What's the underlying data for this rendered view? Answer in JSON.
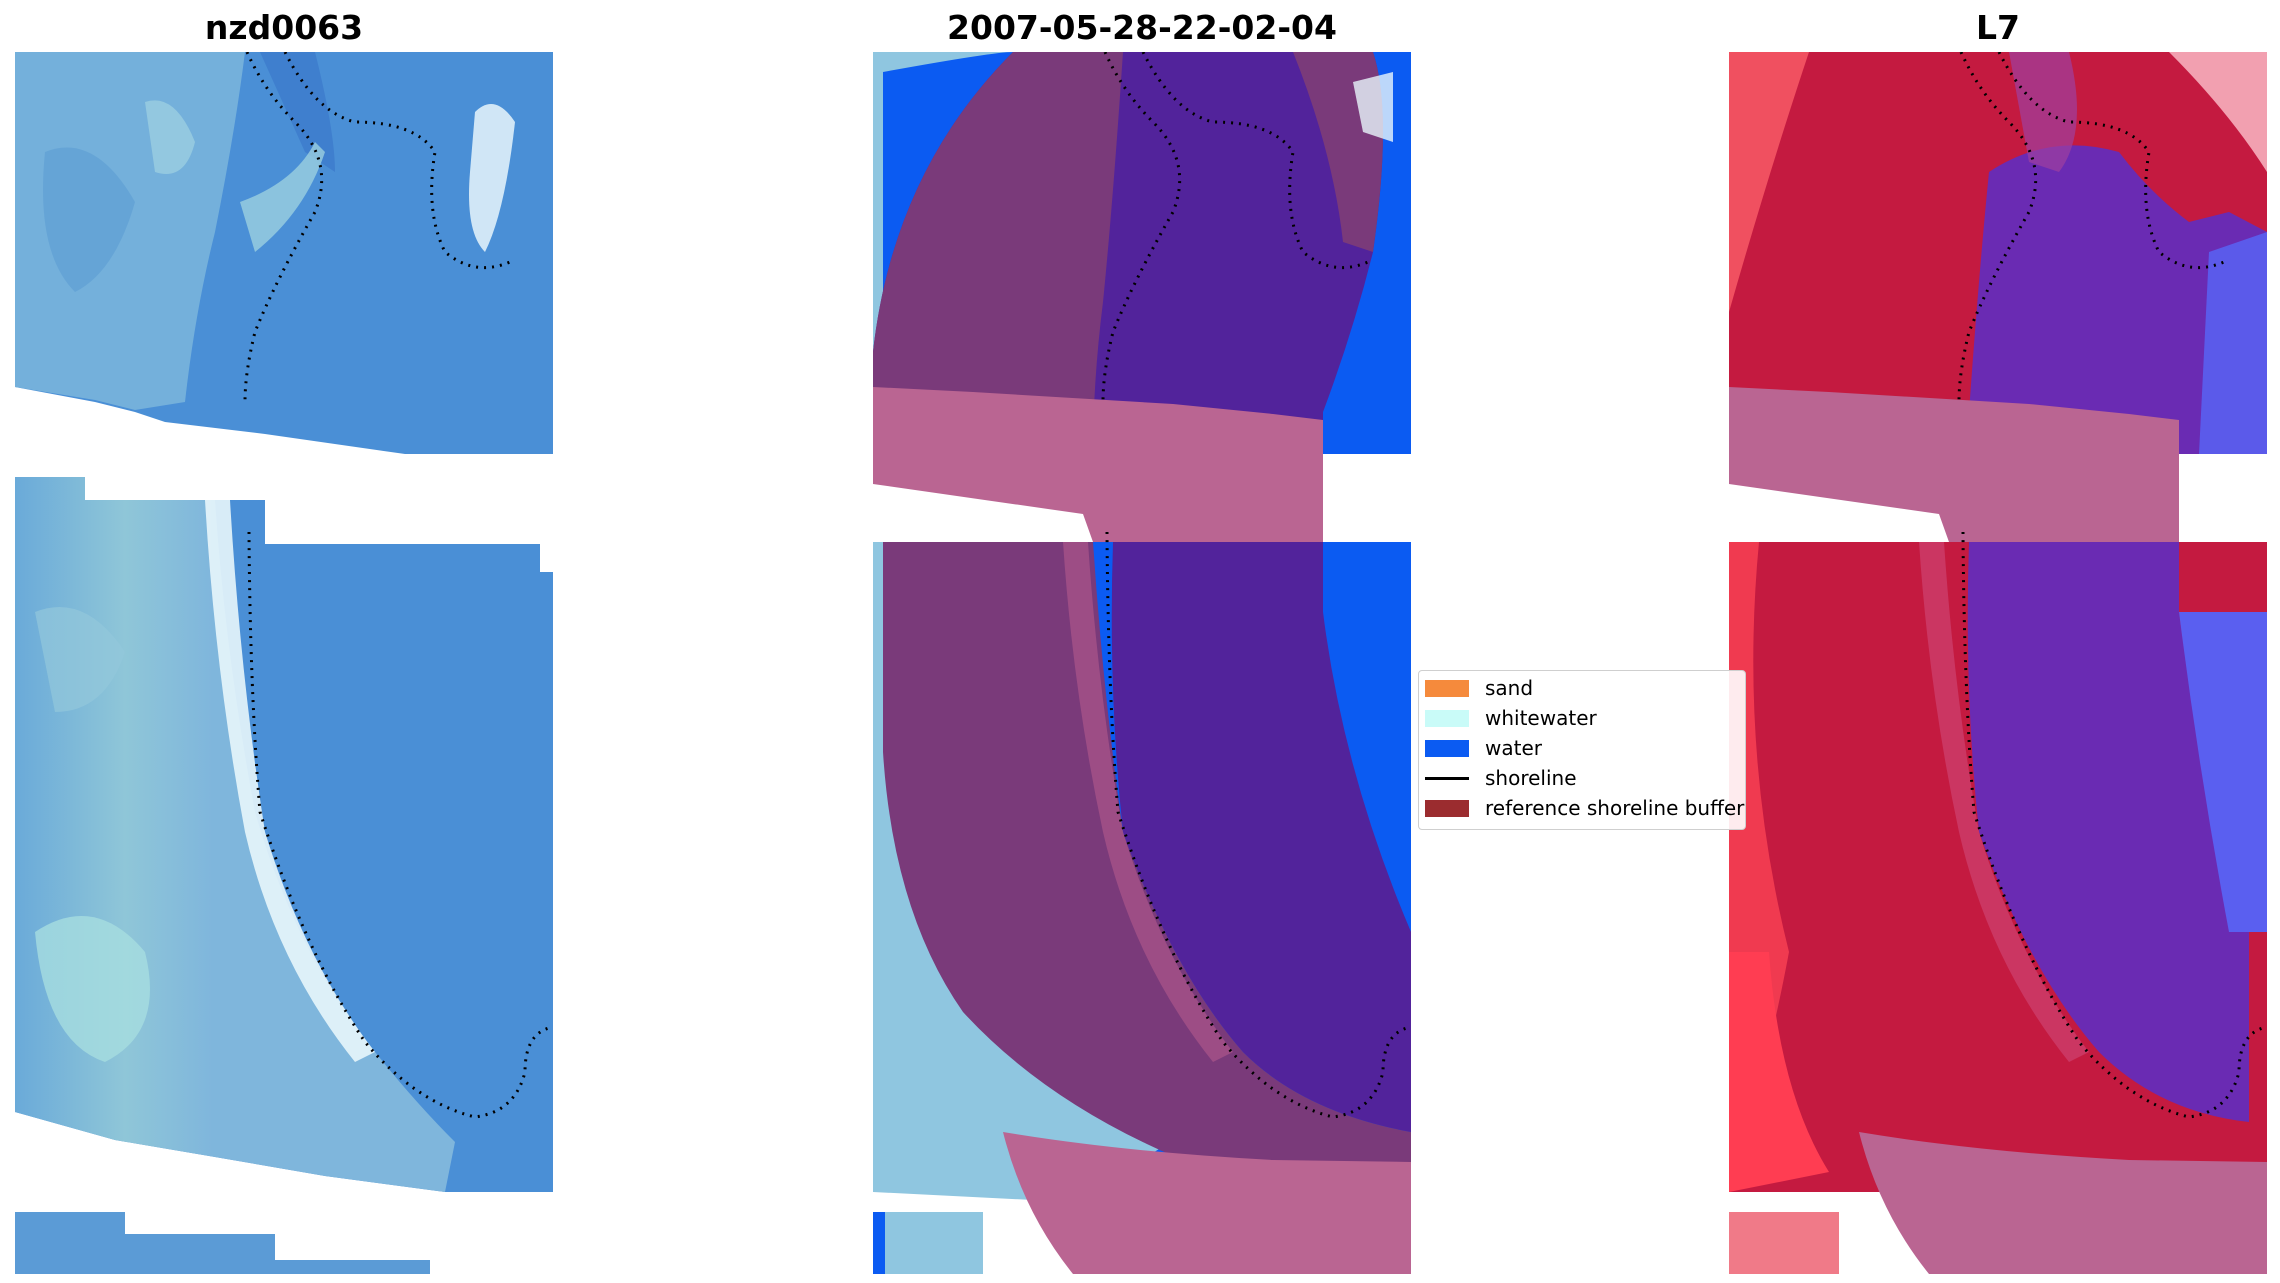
{
  "titles": {
    "site": "nzd0063",
    "date": "2007-05-28-22-02-04",
    "satellite": "L7"
  },
  "legend": {
    "items": [
      {
        "label": "sand",
        "color": "#f58a3c",
        "kind": "patch"
      },
      {
        "label": "whitewater",
        "color": "#c9fbf8",
        "kind": "patch"
      },
      {
        "label": "water",
        "color": "#0b5bf2",
        "kind": "patch"
      },
      {
        "label": "shoreline",
        "color": "#000000",
        "kind": "line"
      },
      {
        "label": "reference shoreline buffer",
        "color": "#9b2c2f",
        "kind": "patch"
      }
    ]
  },
  "colors": {
    "rgb_water": "#4a8fd6",
    "rgb_land": "#7fb7dc",
    "surf_white": "#e8f6fb",
    "classified_water": "#0b5bf2",
    "classified_water_buffer": "#52239b",
    "land_in_buffer": "#7a3a7a",
    "buffer_overlay": "#ba6592",
    "mndwi_land": "#c41a40",
    "mndwi_water": "#6a2bb3"
  }
}
